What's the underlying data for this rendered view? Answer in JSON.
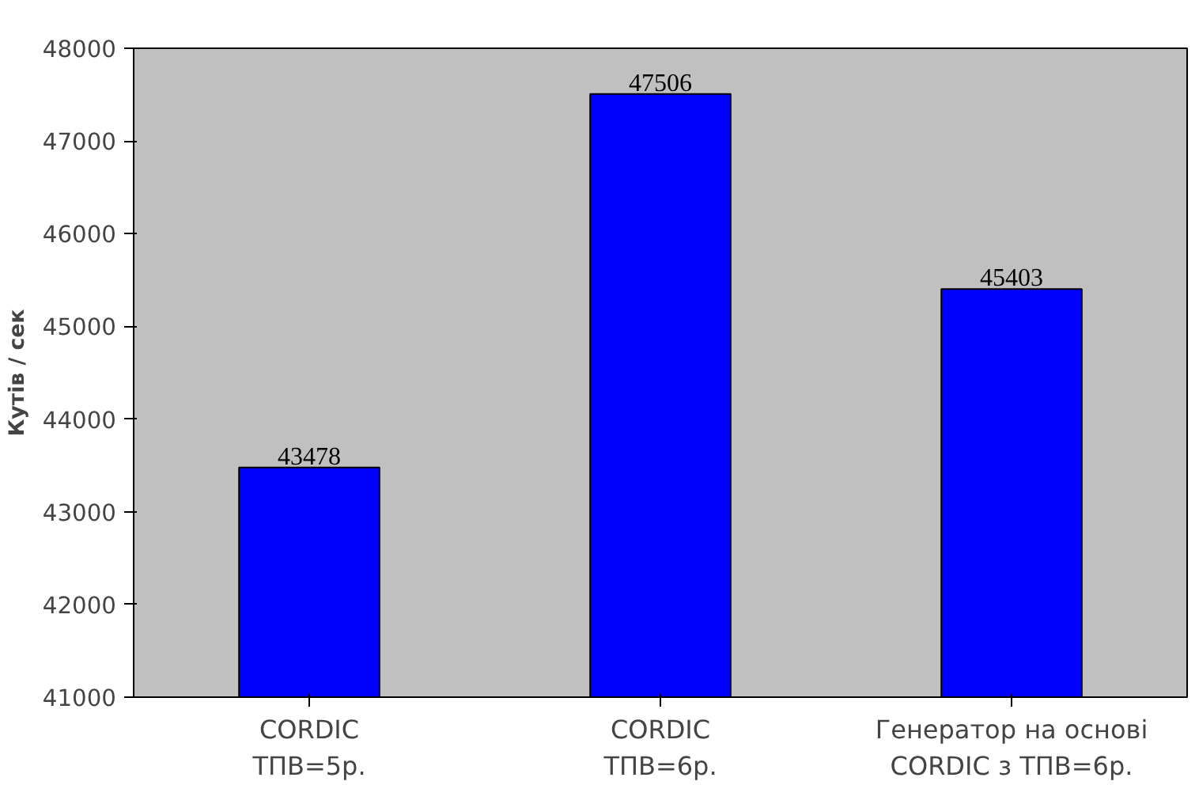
{
  "chart_data": {
    "type": "bar",
    "ylabel": "Кутів / сек",
    "categories": [
      "CORDIC\nТПВ=5р.",
      "CORDIC\nТПВ=6р.",
      "Генератор на основі\nCORDIC з ТПВ=6р."
    ],
    "values": [
      43478,
      47506,
      45403
    ],
    "color": "#0000ff",
    "ylim": [
      41000,
      48000
    ],
    "yticks": [
      41000,
      42000,
      43000,
      44000,
      45000,
      46000,
      47000,
      48000
    ],
    "grid": false,
    "data_labels": true
  }
}
